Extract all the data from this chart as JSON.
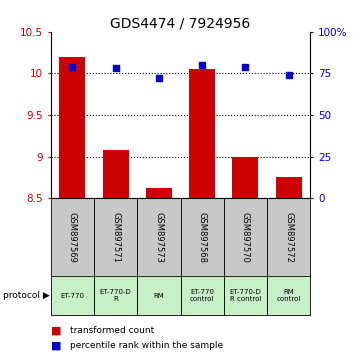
{
  "title": "GDS4474 / 7924956",
  "samples": [
    "GSM897569",
    "GSM897571",
    "GSM897573",
    "GSM897568",
    "GSM897570",
    "GSM897572"
  ],
  "red_values": [
    10.2,
    9.08,
    8.62,
    10.05,
    9.0,
    8.75
  ],
  "blue_values": [
    79,
    78,
    72,
    80,
    79,
    74
  ],
  "ylim_left": [
    8.5,
    10.5
  ],
  "ylim_right": [
    0,
    100
  ],
  "yticks_left": [
    8.5,
    9.0,
    9.5,
    10.0,
    10.5
  ],
  "ytick_labels_left": [
    "8.5",
    "9",
    "9.5",
    "10",
    "10.5"
  ],
  "yticks_right": [
    0,
    25,
    50,
    75,
    100
  ],
  "ytick_labels_right": [
    "0",
    "25",
    "50",
    "75",
    "100%"
  ],
  "protocols": [
    "ET-770",
    "ET-770-D\nR",
    "RM",
    "ET-770\ncontrol",
    "ET-770-D\nR control",
    "RM\ncontrol"
  ],
  "protocol_colors": [
    "#c8f0c8",
    "#c8f0c8",
    "#c8f0c8",
    "#c8f0c8",
    "#c8f0c8",
    "#c8f0c8"
  ],
  "bar_color": "#cc0000",
  "dot_color": "#0000cc",
  "sample_bg_color": "#c8c8c8",
  "bar_bottom": 8.5,
  "gridlines": [
    9.0,
    9.5,
    10.0
  ]
}
